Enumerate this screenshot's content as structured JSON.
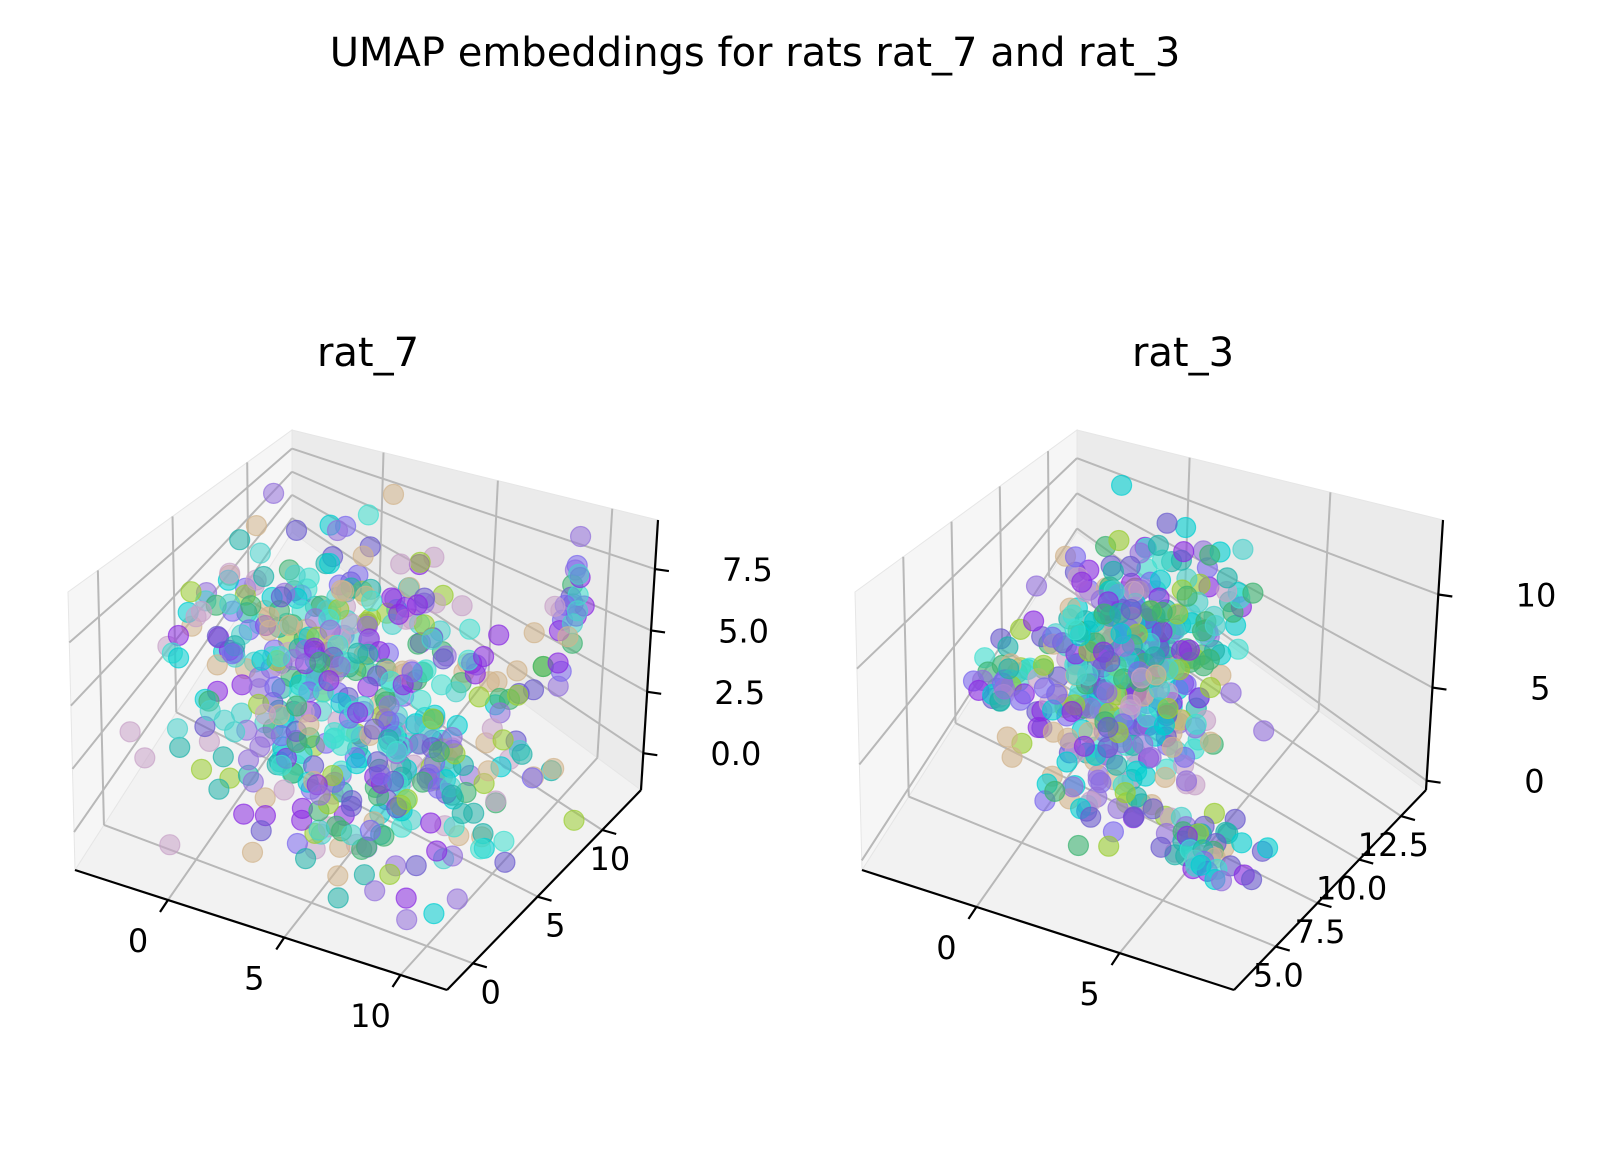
{
  "figure": {
    "title": "UMAP embeddings for rats rat_7 and rat_3"
  },
  "chart_data": [
    {
      "type": "scatter",
      "projection": "3d",
      "title": "rat_7",
      "xlim": [
        -4,
        12
      ],
      "ylim": [
        -2,
        13
      ],
      "zlim": [
        -1.5,
        9.5
      ],
      "xticks": [
        0,
        5,
        10
      ],
      "xtick_labels": [
        "0",
        "5",
        "10"
      ],
      "yticks": [
        0,
        5,
        10
      ],
      "ytick_labels": [
        "0",
        "5",
        "10"
      ],
      "zticks": [
        0,
        2.5,
        5,
        7.5
      ],
      "ztick_labels": [
        "0.0",
        "2.5",
        "5.0",
        "7.5"
      ],
      "grid": true,
      "n_points": 560,
      "point_alpha": 0.55,
      "colors": [
        "#8a2be2",
        "#6a5acd",
        "#00ced1",
        "#40e0d0",
        "#9acd32",
        "#d2b48c",
        "#9370db",
        "#48d1cc",
        "#3cb371",
        "#c8a2c8",
        "#20b2aa",
        "#7b68ee"
      ]
    },
    {
      "type": "scatter",
      "projection": "3d",
      "title": "rat_3",
      "xlim": [
        -4,
        9
      ],
      "ylim": [
        2.5,
        14
      ],
      "zlim": [
        -0.5,
        14
      ],
      "xticks": [
        0,
        5
      ],
      "xtick_labels": [
        "0",
        "5"
      ],
      "yticks": [
        5,
        7.5,
        10,
        12.5
      ],
      "ytick_labels": [
        "5.0",
        "7.5",
        "10.0",
        "12.5"
      ],
      "zticks": [
        0,
        5,
        10
      ],
      "ztick_labels": [
        "0",
        "5",
        "10"
      ],
      "grid": true,
      "n_points": 520,
      "point_alpha": 0.6,
      "colors": [
        "#8a2be2",
        "#6a5acd",
        "#00ced1",
        "#40e0d0",
        "#9acd32",
        "#d2b48c",
        "#9370db",
        "#48d1cc",
        "#3cb371",
        "#c8a2c8",
        "#20b2aa",
        "#7b68ee"
      ]
    }
  ]
}
